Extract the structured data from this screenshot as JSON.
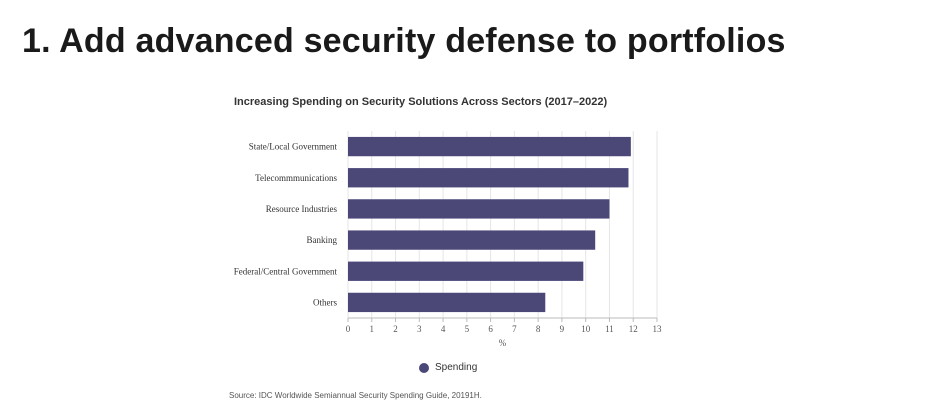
{
  "slide": {
    "title": "1. Add advanced security defense to portfolios"
  },
  "chart_data": {
    "type": "bar",
    "orientation": "horizontal",
    "title": "Increasing Spending on Security Solutions Across Sectors (2017–2022)",
    "categories": [
      "State/Local Government",
      "Telecommmunications",
      "Resource Industries",
      "Banking",
      "Federal/Central Government",
      "Others"
    ],
    "series": [
      {
        "name": "Spending",
        "values": [
          11.9,
          11.8,
          11.0,
          10.4,
          9.9,
          8.3
        ]
      }
    ],
    "xlabel": "%",
    "ylabel": "",
    "xlim": [
      0,
      13
    ],
    "xticks": [
      0,
      1,
      2,
      3,
      4,
      5,
      6,
      7,
      8,
      9,
      10,
      11,
      12,
      13
    ],
    "grid": true,
    "legend_position": "bottom",
    "bar_color": "#4b4878",
    "source": "Source: IDC Worldwide Semiannual Security Spending Guide, 20191H."
  }
}
